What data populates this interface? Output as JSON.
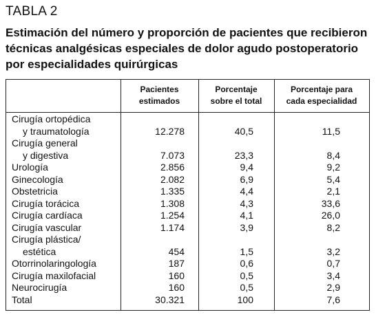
{
  "header": {
    "label": "TABLA 2",
    "title": "Estimación del número y proporción de pacientes que recibieron técnicas analgésicas especiales de dolor agudo postoperatorio por especialidades quirúrgicas"
  },
  "table": {
    "columns": [
      "Pacientes estimados",
      "Porcentaje sobre el total",
      "Porcentaje para cada especialidad"
    ],
    "rows": [
      [
        [
          "Cirugía ortopédica",
          "y traumatología"
        ],
        "12.278",
        "40,5",
        "11,5"
      ],
      [
        [
          "Cirugía general",
          "y digestiva"
        ],
        "7.073",
        "23,3",
        "8,4"
      ],
      [
        [
          "Urología"
        ],
        "2.856",
        "9,4",
        "9,2"
      ],
      [
        [
          "Ginecología"
        ],
        "2.082",
        "6,9",
        "5,4"
      ],
      [
        [
          "Obstetricia"
        ],
        "1.335",
        "4,4",
        "2,1"
      ],
      [
        [
          "Cirugía torácica"
        ],
        "1.308",
        "4,3",
        "33,6"
      ],
      [
        [
          "Cirugía cardíaca"
        ],
        "1.254",
        "4,1",
        "26,0"
      ],
      [
        [
          "Cirugía vascular"
        ],
        "1.174",
        "3,9",
        "8,2"
      ],
      [
        [
          "Cirugía plástica/",
          "estética"
        ],
        "454",
        "1,5",
        "3,2"
      ],
      [
        [
          "Otorrinolaringología"
        ],
        "187",
        "0,6",
        "0,7"
      ],
      [
        [
          "Cirugía maxilofacial"
        ],
        "160",
        "0,5",
        "3,4"
      ],
      [
        [
          "Neurocirugía"
        ],
        "160",
        "0,5",
        "2,9"
      ],
      [
        [
          "Total"
        ],
        "30.321",
        "100",
        "7,6"
      ]
    ]
  }
}
